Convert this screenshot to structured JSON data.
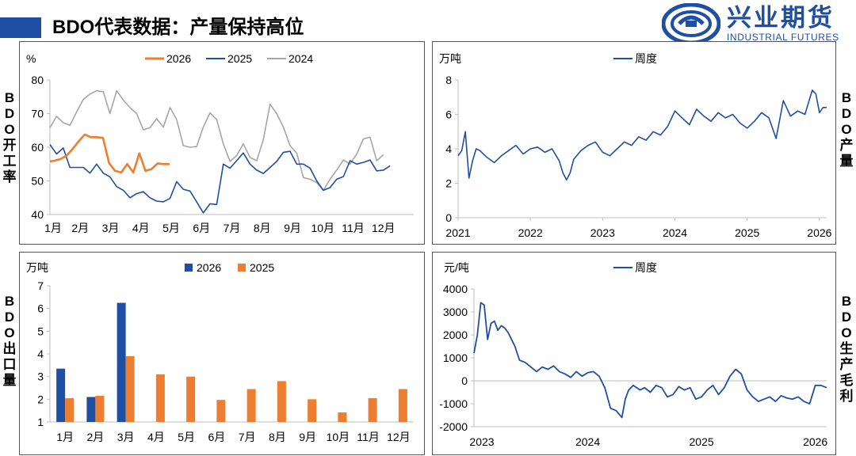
{
  "header": {
    "title": "BDO代表数据：产量保持高位",
    "logo_cn": "兴业期货",
    "logo_en": "INDUSTRIAL FUTURES",
    "accent": "#1f4fa3"
  },
  "side_labels": {
    "c1": "BDO开工率",
    "c2": "BDO产量",
    "c3": "BDO出口量",
    "c4": "BDO生产毛利"
  },
  "colors": {
    "s2026": "#ed7d31",
    "s2025": "#1f4fa3",
    "s2024": "#a6a6a6",
    "line": "#1f4fa3",
    "bar2026": "#1f4fa3",
    "bar2025": "#ed7d31"
  },
  "chart_data": [
    {
      "id": "c1",
      "type": "line",
      "unit": "%",
      "ylim": [
        40,
        80
      ],
      "yticks": [
        40,
        50,
        60,
        70,
        80
      ],
      "xlim": [
        0,
        12
      ],
      "categories": [
        "1月",
        "2月",
        "3月",
        "4月",
        "5月",
        "6月",
        "7月",
        "8月",
        "9月",
        "10月",
        "11月",
        "12月"
      ],
      "legend_position": "top",
      "series": [
        {
          "name": "2026",
          "color": "#ed7d31",
          "x": [
            0.0,
            0.15,
            0.35,
            0.55,
            0.75,
            0.95,
            1.15,
            1.35,
            1.55,
            1.75,
            1.95,
            2.15,
            2.35,
            2.55,
            2.75,
            2.95,
            3.15,
            3.35,
            3.55,
            3.75,
            3.95,
            4.15,
            4.35,
            4.55,
            4.75,
            4.95
          ],
          "y": [
            55.8,
            56.0,
            56.5,
            57.5,
            59.5,
            61.8,
            63.8,
            63.0,
            63.0,
            62.8,
            55.3,
            53.0,
            52.5,
            55.0,
            52.5,
            58.2,
            53.0,
            53.5,
            55.2,
            55.0,
            55.0,
            null,
            null,
            null,
            null,
            null
          ]
        },
        {
          "name": "2025",
          "color": "#1f4fa3",
          "x": [
            0.0,
            0.22,
            0.44,
            0.66,
            0.88,
            1.1,
            1.32,
            1.54,
            1.76,
            1.98,
            2.2,
            2.42,
            2.64,
            2.86,
            3.08,
            3.3,
            3.52,
            3.74,
            3.96,
            4.18,
            4.4,
            4.62,
            4.84,
            5.06,
            5.28,
            5.5,
            5.72,
            5.94,
            6.16,
            6.38,
            6.6,
            6.82,
            7.04,
            7.26,
            7.48,
            7.7,
            7.92,
            8.14,
            8.36,
            8.58,
            8.8,
            9.02,
            9.24,
            9.46,
            9.68,
            9.9,
            10.12,
            10.34,
            10.56,
            10.78,
            11.0,
            11.22,
            11.44,
            11.66,
            11.88,
            12.0
          ],
          "y": [
            60.8,
            58.0,
            59.8,
            54.0,
            54.0,
            54.0,
            52.3,
            55.0,
            52.3,
            51.2,
            48.3,
            47.2,
            45.0,
            46.2,
            46.8,
            45.0,
            44.0,
            43.8,
            44.8,
            49.8,
            47.5,
            47.0,
            43.8,
            40.5,
            43.2,
            43.0,
            55.0,
            53.8,
            56.0,
            58.3,
            55.0,
            53.2,
            52.2,
            54.0,
            55.8,
            58.5,
            58.8,
            55.0,
            55.0,
            53.8,
            50.0,
            47.2,
            48.0,
            50.5,
            51.3,
            56.0,
            55.0,
            55.5,
            56.2,
            53.0,
            53.2,
            54.5,
            null,
            null,
            null,
            null
          ]
        },
        {
          "name": "2024",
          "color": "#a6a6a6",
          "x": [
            0.0,
            0.22,
            0.44,
            0.66,
            0.88,
            1.1,
            1.32,
            1.54,
            1.76,
            1.98,
            2.2,
            2.42,
            2.64,
            2.86,
            3.08,
            3.3,
            3.52,
            3.74,
            3.96,
            4.18,
            4.4,
            4.62,
            4.84,
            5.06,
            5.28,
            5.5,
            5.72,
            5.94,
            6.16,
            6.38,
            6.6,
            6.82,
            7.04,
            7.26,
            7.48,
            7.7,
            7.92,
            8.14,
            8.36,
            8.58,
            8.8,
            9.02,
            9.24,
            9.46,
            9.68,
            9.9,
            10.12,
            10.34,
            10.56,
            10.78,
            11.0,
            11.22,
            11.44,
            11.66,
            11.88,
            12.0
          ],
          "y": [
            65.8,
            69.2,
            67.3,
            66.5,
            70.5,
            74.2,
            75.8,
            76.8,
            76.5,
            70.0,
            76.8,
            74.0,
            71.8,
            70.0,
            65.2,
            65.8,
            68.5,
            66.0,
            71.8,
            68.2,
            60.5,
            60.0,
            60.2,
            66.0,
            70.2,
            68.2,
            61.0,
            55.8,
            57.5,
            61.0,
            57.0,
            56.0,
            62.3,
            72.8,
            70.0,
            66.0,
            60.5,
            58.2,
            51.0,
            50.5,
            49.5,
            47.2,
            50.5,
            53.2,
            56.2,
            55.0,
            58.0,
            62.5,
            63.0,
            56.0,
            57.8,
            null,
            null,
            null,
            null,
            null
          ]
        }
      ]
    },
    {
      "id": "c2",
      "type": "line",
      "unit": "万吨",
      "ylim": [
        0,
        8
      ],
      "yticks": [
        0,
        2,
        4,
        6,
        8
      ],
      "xlim": [
        2021,
        2026.1
      ],
      "xticks": [
        2021,
        2022,
        2023,
        2024,
        2025,
        2026
      ],
      "legend_position": "top",
      "series": [
        {
          "name": "周度",
          "color": "#1f4fa3",
          "x": [
            2021.0,
            2021.05,
            2021.1,
            2021.15,
            2021.2,
            2021.25,
            2021.3,
            2021.4,
            2021.5,
            2021.6,
            2021.7,
            2021.8,
            2021.9,
            2022.0,
            2022.1,
            2022.2,
            2022.3,
            2022.4,
            2022.45,
            2022.5,
            2022.55,
            2022.6,
            2022.7,
            2022.8,
            2022.9,
            2023.0,
            2023.1,
            2023.2,
            2023.3,
            2023.4,
            2023.5,
            2023.6,
            2023.7,
            2023.8,
            2023.9,
            2024.0,
            2024.1,
            2024.2,
            2024.3,
            2024.4,
            2024.5,
            2024.6,
            2024.7,
            2024.8,
            2024.9,
            2025.0,
            2025.1,
            2025.2,
            2025.3,
            2025.4,
            2025.5,
            2025.6,
            2025.7,
            2025.8,
            2025.9,
            2025.95,
            2026.0,
            2026.05,
            2026.1
          ],
          "y": [
            3.6,
            3.9,
            5.0,
            2.3,
            3.3,
            4.0,
            3.9,
            3.5,
            3.2,
            3.6,
            3.9,
            4.2,
            3.7,
            4.0,
            4.1,
            3.8,
            4.0,
            3.3,
            2.6,
            2.2,
            2.6,
            3.4,
            3.9,
            4.2,
            4.4,
            3.8,
            3.6,
            4.0,
            4.4,
            4.2,
            4.7,
            4.5,
            5.0,
            4.8,
            5.3,
            6.2,
            5.8,
            5.4,
            6.3,
            5.9,
            5.6,
            6.1,
            5.8,
            6.0,
            5.5,
            5.2,
            5.6,
            6.1,
            5.8,
            4.6,
            6.8,
            5.9,
            6.2,
            6.0,
            7.4,
            7.2,
            6.1,
            6.4,
            6.4
          ]
        }
      ]
    },
    {
      "id": "c3",
      "type": "bar",
      "unit": "万吨",
      "ylim": [
        1,
        7
      ],
      "yticks": [
        1,
        2,
        3,
        4,
        5,
        6,
        7
      ],
      "categories": [
        "1月",
        "2月",
        "3月",
        "4月",
        "5月",
        "6月",
        "7月",
        "8月",
        "9月",
        "10月",
        "11月",
        "12月"
      ],
      "legend_position": "top",
      "series": [
        {
          "name": "2026",
          "color": "#1f4fa3",
          "values": [
            3.35,
            2.1,
            6.25,
            null,
            null,
            null,
            null,
            null,
            null,
            null,
            null,
            null
          ]
        },
        {
          "name": "2025",
          "color": "#ed7d31",
          "values": [
            2.05,
            2.15,
            3.9,
            3.1,
            3.0,
            1.97,
            2.45,
            2.8,
            2.0,
            1.42,
            2.05,
            2.45
          ]
        }
      ]
    },
    {
      "id": "c4",
      "type": "line",
      "unit": "元/吨",
      "ylim": [
        -2000,
        4000
      ],
      "yticks": [
        -2000,
        -1000,
        0,
        1000,
        2000,
        3000,
        4000
      ],
      "xlim": [
        2023,
        2026.1
      ],
      "xticks": [
        2023,
        2024,
        2025,
        2026
      ],
      "legend_position": "top",
      "series": [
        {
          "name": "周度",
          "color": "#1f4fa3",
          "x": [
            2023.0,
            2023.03,
            2023.06,
            2023.09,
            2023.12,
            2023.15,
            2023.18,
            2023.21,
            2023.24,
            2023.27,
            2023.3,
            2023.33,
            2023.36,
            2023.4,
            2023.45,
            2023.5,
            2023.55,
            2023.6,
            2023.65,
            2023.7,
            2023.75,
            2023.8,
            2023.85,
            2023.9,
            2023.95,
            2024.0,
            2024.05,
            2024.1,
            2024.15,
            2024.2,
            2024.25,
            2024.3,
            2024.33,
            2024.36,
            2024.4,
            2024.43,
            2024.46,
            2024.5,
            2024.55,
            2024.6,
            2024.65,
            2024.7,
            2024.75,
            2024.8,
            2024.85,
            2024.9,
            2024.95,
            2025.0,
            2025.05,
            2025.1,
            2025.15,
            2025.2,
            2025.25,
            2025.3,
            2025.35,
            2025.4,
            2025.45,
            2025.5,
            2025.55,
            2025.6,
            2025.65,
            2025.7,
            2025.75,
            2025.8,
            2025.85,
            2025.9,
            2025.95,
            2026.0,
            2026.05,
            2026.1
          ],
          "y": [
            1200,
            2000,
            3400,
            3300,
            1800,
            2500,
            2600,
            2200,
            2400,
            2300,
            2100,
            1800,
            1500,
            900,
            800,
            600,
            400,
            600,
            500,
            650,
            400,
            300,
            150,
            400,
            200,
            350,
            400,
            200,
            -300,
            -1200,
            -1300,
            -1600,
            -800,
            -400,
            -200,
            -300,
            -400,
            -300,
            -500,
            -200,
            -300,
            -700,
            -600,
            -250,
            -400,
            -300,
            -800,
            -700,
            -400,
            -200,
            -600,
            -300,
            200,
            500,
            300,
            -400,
            -700,
            -900,
            -800,
            -700,
            -900,
            -650,
            -750,
            -800,
            -700,
            -900,
            -1000,
            -200,
            -200,
            -300
          ]
        }
      ]
    }
  ]
}
